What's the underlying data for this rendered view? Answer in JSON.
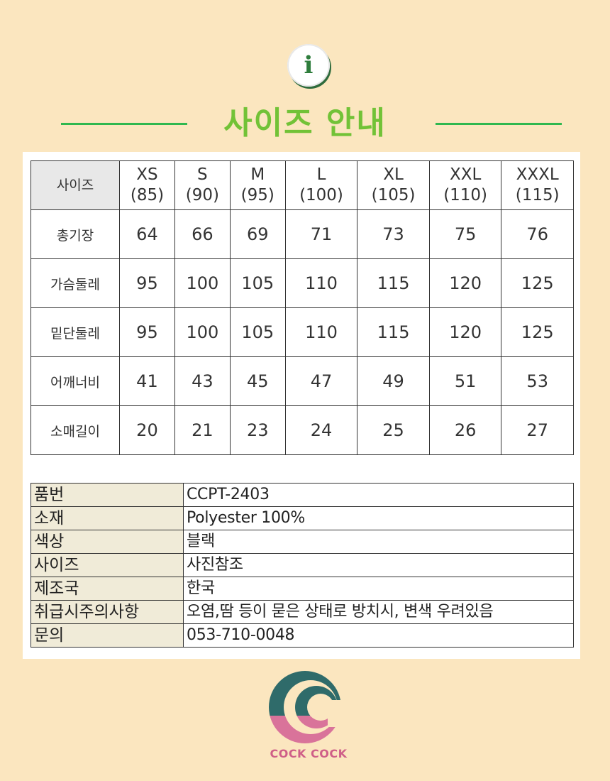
{
  "header": {
    "info_icon": "info-icon",
    "title": "사이즈 안내"
  },
  "size_table": {
    "corner_label": "사이즈",
    "columns": [
      {
        "size": "XS",
        "number": "(85)"
      },
      {
        "size": "S",
        "number": "(90)"
      },
      {
        "size": "M",
        "number": "(95)"
      },
      {
        "size": "L",
        "number": "(100)"
      },
      {
        "size": "XL",
        "number": "(105)"
      },
      {
        "size": "XXL",
        "number": "(110)"
      },
      {
        "size": "XXXL",
        "number": "(115)"
      }
    ],
    "rows": [
      {
        "label": "총기장",
        "values": [
          "64",
          "66",
          "69",
          "71",
          "73",
          "75",
          "76"
        ]
      },
      {
        "label": "가슴둘레",
        "values": [
          "95",
          "100",
          "105",
          "110",
          "115",
          "120",
          "125"
        ]
      },
      {
        "label": "밑단둘레",
        "values": [
          "95",
          "100",
          "105",
          "110",
          "115",
          "120",
          "125"
        ]
      },
      {
        "label": "어깨너비",
        "values": [
          "41",
          "43",
          "45",
          "47",
          "49",
          "51",
          "53"
        ]
      },
      {
        "label": "소매길이",
        "values": [
          "20",
          "21",
          "23",
          "24",
          "25",
          "26",
          "27"
        ]
      }
    ]
  },
  "spec_table": [
    {
      "label": "품번",
      "value": "CCPT-2403"
    },
    {
      "label": "소재",
      "value": "Polyester 100%"
    },
    {
      "label": "색상",
      "value": "블랙"
    },
    {
      "label": "사이즈",
      "value": "사진참조"
    },
    {
      "label": "제조국",
      "value": "한국"
    },
    {
      "label": "취급시주의사항",
      "value": "오염,땀 등이 묻은 상태로 방치시, 변색 우려있음"
    },
    {
      "label": "문의",
      "value": "053-710-0048"
    }
  ],
  "logo": {
    "text": "COCK COCK",
    "colors": {
      "teal": "#2f6b6a",
      "pink": "#d9739a"
    }
  },
  "colors": {
    "background": "#fbe6bf",
    "title_green": "#72c237",
    "line_green": "#2fb84f"
  }
}
